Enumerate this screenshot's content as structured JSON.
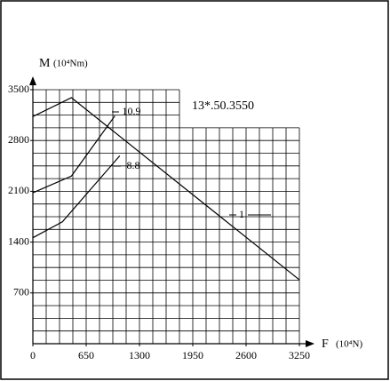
{
  "chart_data": {
    "type": "line",
    "y_label": "M",
    "y_unit": "(10⁴Nm)",
    "x_label": "F",
    "x_unit": "(10⁴N)",
    "annotation": "13*.50.3550",
    "xlim": [
      0,
      3250
    ],
    "ylim": [
      0,
      3500
    ],
    "xticks": [
      0,
      650,
      1300,
      1950,
      2600,
      3250
    ],
    "yticks": [
      700,
      1400,
      2100,
      2800,
      3500
    ],
    "grid": true,
    "series": [
      {
        "name": "1",
        "color": "#000000",
        "x": [
          0,
          470,
          3250
        ],
        "values": [
          3130,
          3390,
          880
        ]
      },
      {
        "name": "10.9",
        "color": "#000000",
        "x": [
          0,
          470,
          1000
        ],
        "values": [
          2080,
          2310,
          3140
        ]
      },
      {
        "name": "8.8",
        "color": "#000000",
        "x": [
          0,
          360,
          1060
        ],
        "values": [
          1460,
          1680,
          2590
        ]
      }
    ]
  }
}
